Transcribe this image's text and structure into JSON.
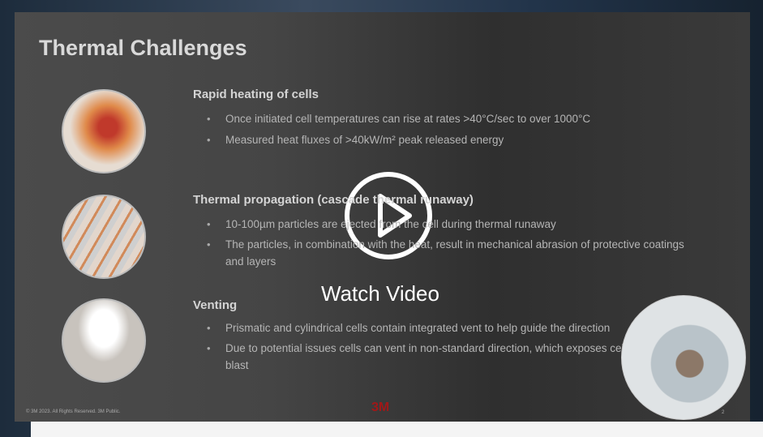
{
  "slide": {
    "title": "Thermal Challenges",
    "sections": [
      {
        "heading": "Rapid heating of cells",
        "bullets": [
          "Once initiated cell temperatures can rise at rates >40°C/sec to over 1000°C",
          "Measured heat fluxes of >40kW/m² peak released energy"
        ]
      },
      {
        "heading": "Thermal propagation (cascade thermal runaway)",
        "bullets": [
          "10-100µm particles are ejected from the cell during thermal runaway",
          "The particles, in combination with the heat, result in mechanical abrasion of protective coatings and layers"
        ]
      },
      {
        "heading": "Venting",
        "bullets": [
          "Prismatic and cylindrical cells contain integrated vent to help guide the direction",
          "Due to potential issues cells can vent in non-standard direction, which exposes cells to a direct blast"
        ]
      }
    ],
    "footer": "© 3M 2023. All Rights Reserved. 3M Public.",
    "logo": "3M",
    "page_number": "2"
  },
  "player": {
    "label": "Watch Video"
  }
}
